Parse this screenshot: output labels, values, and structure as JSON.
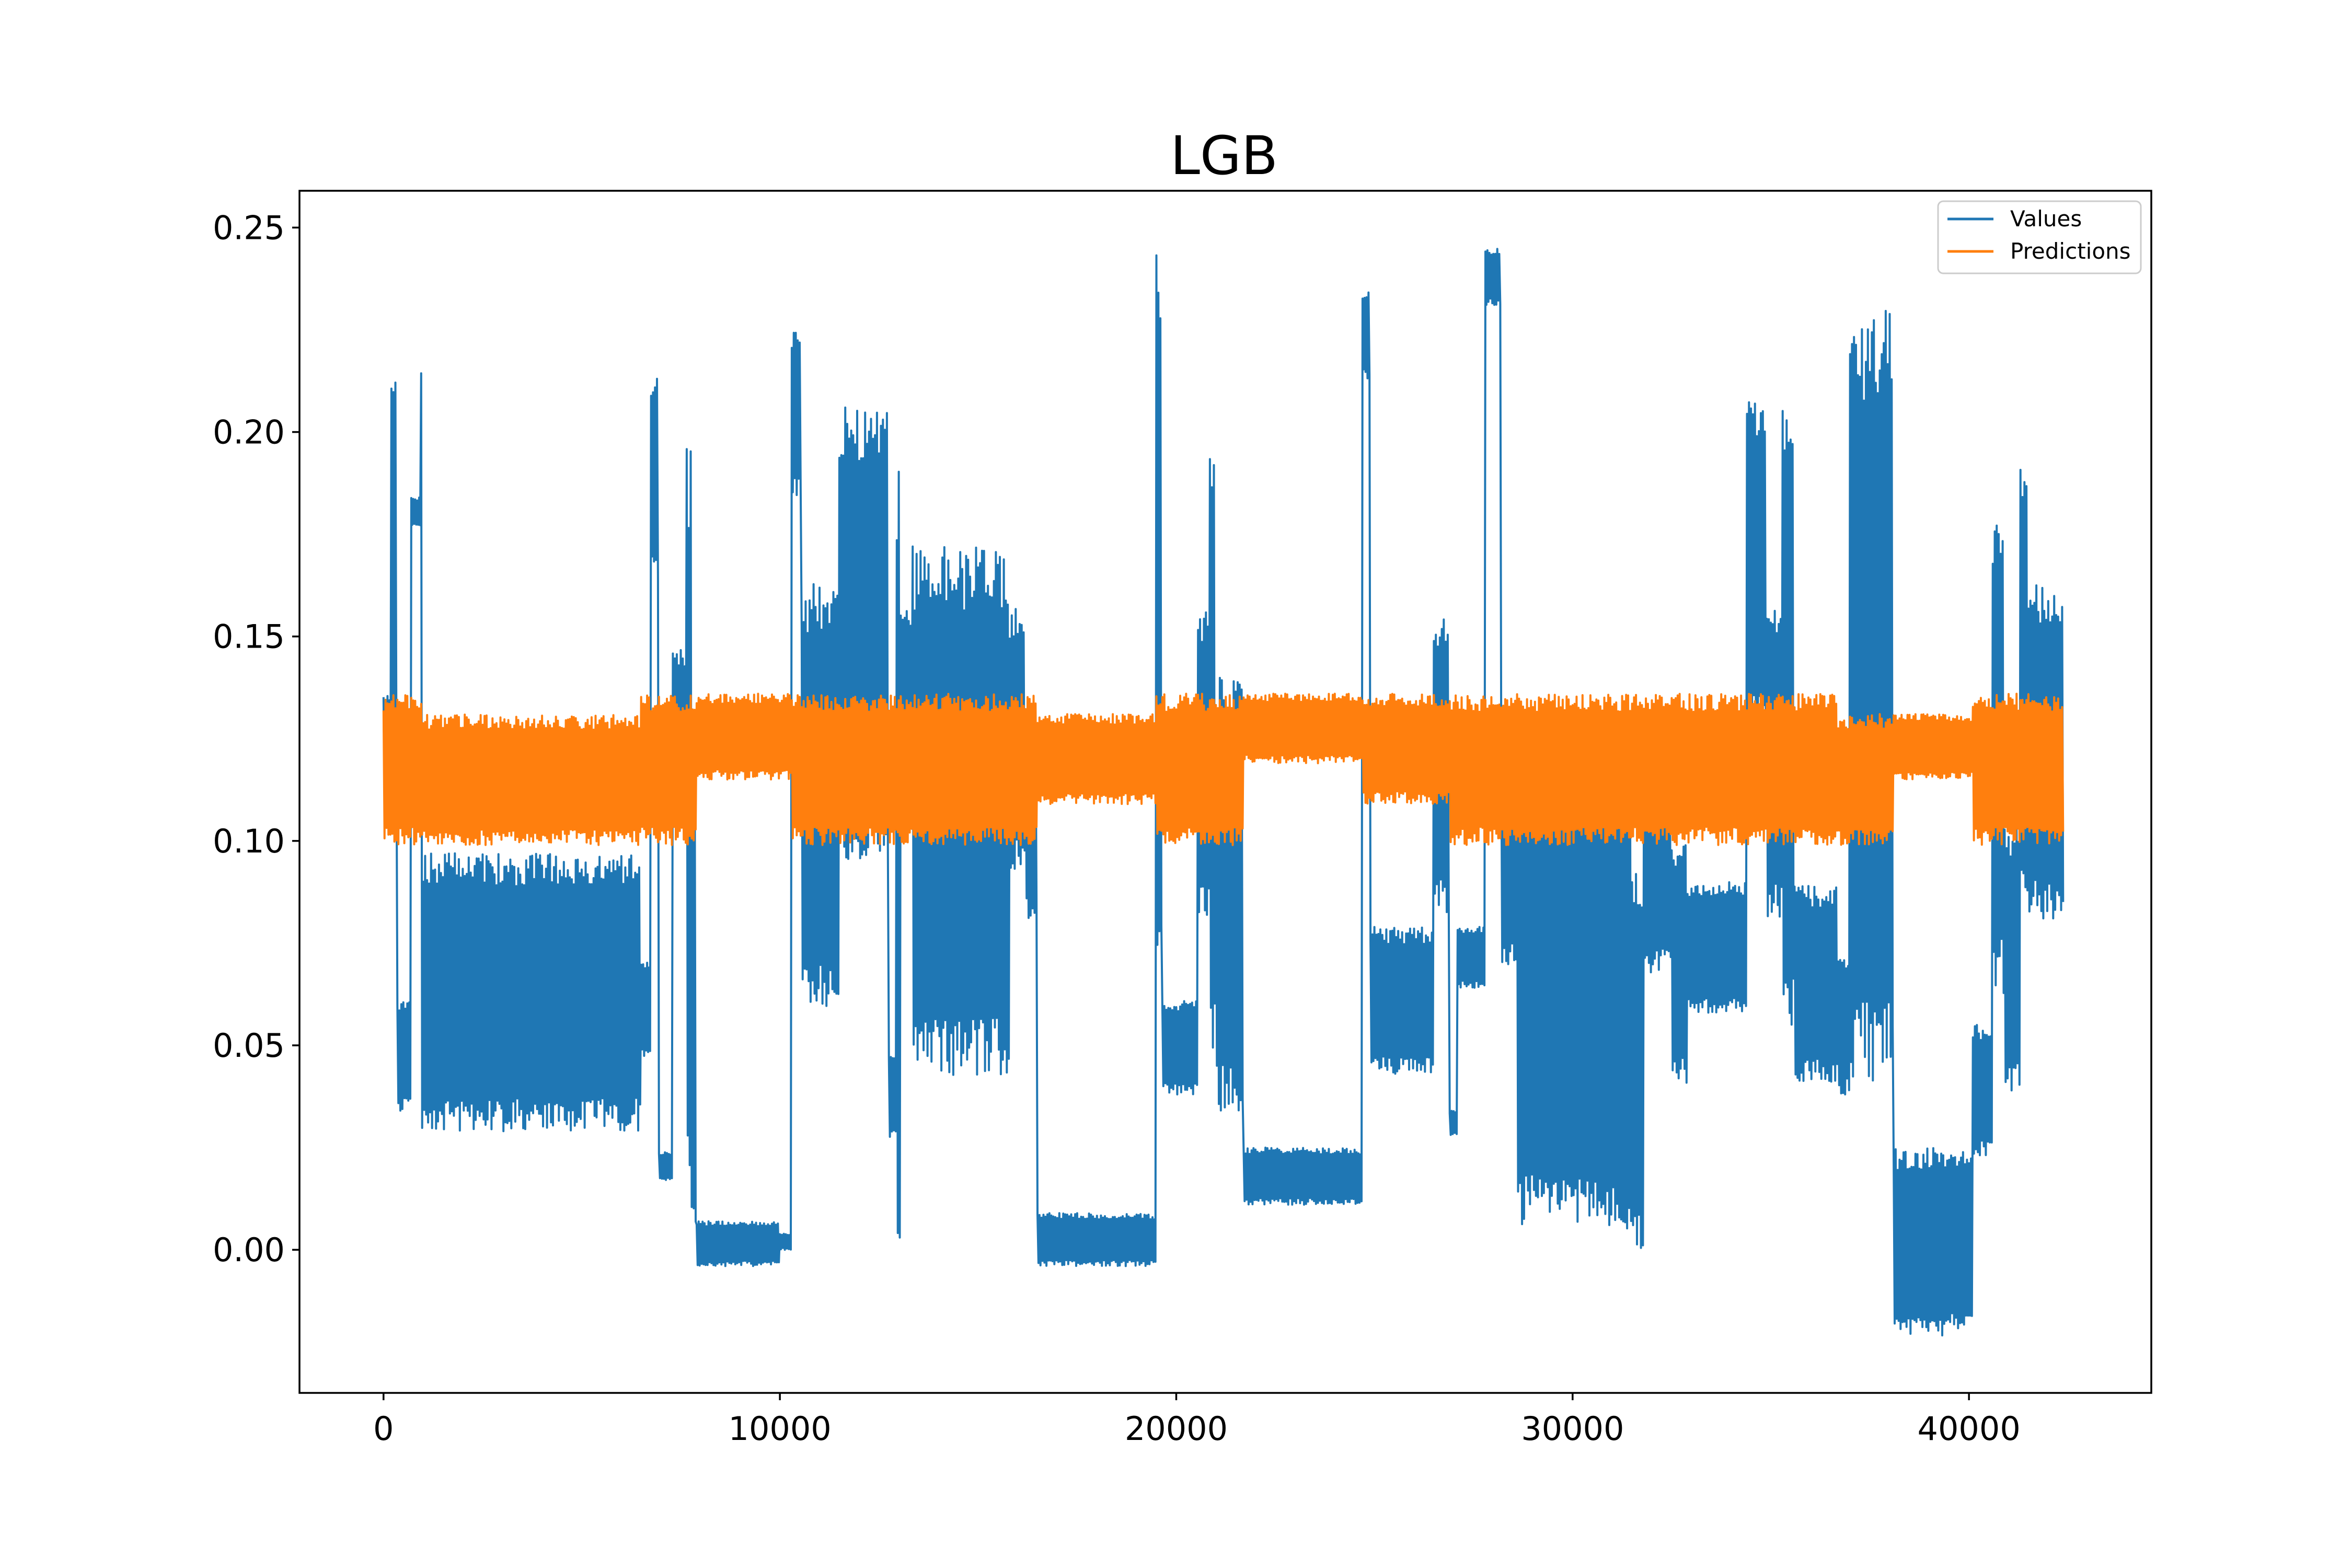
{
  "chart_data": {
    "type": "line",
    "title": "LGB",
    "xlabel": "",
    "ylabel": "",
    "xlim": [
      -2120,
      44600
    ],
    "ylim": [
      -0.035,
      0.259
    ],
    "x_ticks": [
      0,
      10000,
      20000,
      30000,
      40000
    ],
    "x_tick_labels": [
      "0",
      "10000",
      "20000",
      "30000",
      "40000"
    ],
    "y_ticks": [
      0.0,
      0.05,
      0.1,
      0.15,
      0.2,
      0.25
    ],
    "y_tick_labels": [
      "0.00",
      "0.05",
      "0.10",
      "0.15",
      "0.20",
      "0.25"
    ],
    "grid": false,
    "legend_position": "top-right",
    "series_step": 25,
    "series": [
      {
        "name": "Values",
        "color": "#1f77b4",
        "segments": [
          {
            "x_start": 0,
            "x_end": 200,
            "low": 0.109,
            "high": 0.136
          },
          {
            "x_start": 200,
            "x_end": 350,
            "low": 0.115,
            "high": 0.217
          },
          {
            "x_start": 350,
            "x_end": 700,
            "low": 0.034,
            "high": 0.061
          },
          {
            "x_start": 700,
            "x_end": 950,
            "low": 0.177,
            "high": 0.184
          },
          {
            "x_start": 950,
            "x_end": 1000,
            "low": 0.01,
            "high": 0.221
          },
          {
            "x_start": 1000,
            "x_end": 6500,
            "low": 0.029,
            "high": 0.097
          },
          {
            "x_start": 6500,
            "x_end": 6750,
            "low": 0.047,
            "high": 0.071
          },
          {
            "x_start": 6750,
            "x_end": 6950,
            "low": 0.164,
            "high": 0.214
          },
          {
            "x_start": 6950,
            "x_end": 7300,
            "low": 0.017,
            "high": 0.024
          },
          {
            "x_start": 7300,
            "x_end": 7650,
            "low": 0.104,
            "high": 0.147
          },
          {
            "x_start": 7650,
            "x_end": 7800,
            "low": 0.006,
            "high": 0.198
          },
          {
            "x_start": 7800,
            "x_end": 7900,
            "low": 0.006,
            "high": 0.125
          },
          {
            "x_start": 7900,
            "x_end": 10000,
            "low": -0.004,
            "high": 0.007
          },
          {
            "x_start": 10000,
            "x_end": 10300,
            "low": 0.0,
            "high": 0.004
          },
          {
            "x_start": 10300,
            "x_end": 10550,
            "low": 0.184,
            "high": 0.225
          },
          {
            "x_start": 10550,
            "x_end": 11500,
            "low": 0.058,
            "high": 0.163
          },
          {
            "x_start": 11500,
            "x_end": 12750,
            "low": 0.095,
            "high": 0.206
          },
          {
            "x_start": 12750,
            "x_end": 12950,
            "low": 0.027,
            "high": 0.048
          },
          {
            "x_start": 12950,
            "x_end": 13050,
            "low": 0.0,
            "high": 0.191
          },
          {
            "x_start": 13050,
            "x_end": 13350,
            "low": 0.117,
            "high": 0.157
          },
          {
            "x_start": 13350,
            "x_end": 15800,
            "low": 0.041,
            "high": 0.172
          },
          {
            "x_start": 15800,
            "x_end": 16200,
            "low": 0.093,
            "high": 0.157
          },
          {
            "x_start": 16200,
            "x_end": 16500,
            "low": 0.081,
            "high": 0.131
          },
          {
            "x_start": 16500,
            "x_end": 19500,
            "low": -0.004,
            "high": 0.009
          },
          {
            "x_start": 19500,
            "x_end": 19650,
            "low": 0.072,
            "high": 0.244
          },
          {
            "x_start": 19650,
            "x_end": 20550,
            "low": 0.038,
            "high": 0.061
          },
          {
            "x_start": 20550,
            "x_end": 20850,
            "low": 0.08,
            "high": 0.156
          },
          {
            "x_start": 20850,
            "x_end": 21000,
            "low": 0.048,
            "high": 0.202
          },
          {
            "x_start": 21000,
            "x_end": 21700,
            "low": 0.032,
            "high": 0.142
          },
          {
            "x_start": 21700,
            "x_end": 24700,
            "low": 0.011,
            "high": 0.025
          },
          {
            "x_start": 24700,
            "x_end": 24900,
            "low": 0.213,
            "high": 0.235
          },
          {
            "x_start": 24900,
            "x_end": 26500,
            "low": 0.043,
            "high": 0.079
          },
          {
            "x_start": 26500,
            "x_end": 26900,
            "low": 0.082,
            "high": 0.155
          },
          {
            "x_start": 26900,
            "x_end": 27100,
            "low": 0.028,
            "high": 0.034
          },
          {
            "x_start": 27100,
            "x_end": 27800,
            "low": 0.064,
            "high": 0.079
          },
          {
            "x_start": 27800,
            "x_end": 28200,
            "low": 0.231,
            "high": 0.245
          },
          {
            "x_start": 28200,
            "x_end": 28600,
            "low": 0.069,
            "high": 0.122
          },
          {
            "x_start": 28600,
            "x_end": 31500,
            "low": 0.005,
            "high": 0.117
          },
          {
            "x_start": 31500,
            "x_end": 31800,
            "low": -0.002,
            "high": 0.094
          },
          {
            "x_start": 31800,
            "x_end": 32500,
            "low": 0.067,
            "high": 0.125
          },
          {
            "x_start": 32500,
            "x_end": 32900,
            "low": 0.04,
            "high": 0.1
          },
          {
            "x_start": 32900,
            "x_end": 34400,
            "low": 0.058,
            "high": 0.09
          },
          {
            "x_start": 34400,
            "x_end": 34900,
            "low": 0.126,
            "high": 0.208
          },
          {
            "x_start": 34900,
            "x_end": 35300,
            "low": 0.081,
            "high": 0.158
          },
          {
            "x_start": 35300,
            "x_end": 35600,
            "low": 0.053,
            "high": 0.21
          },
          {
            "x_start": 35600,
            "x_end": 36700,
            "low": 0.041,
            "high": 0.089
          },
          {
            "x_start": 36700,
            "x_end": 37000,
            "low": 0.038,
            "high": 0.072
          },
          {
            "x_start": 37000,
            "x_end": 38100,
            "low": 0.04,
            "high": 0.23
          },
          {
            "x_start": 38100,
            "x_end": 40100,
            "low": -0.021,
            "high": 0.025
          },
          {
            "x_start": 40100,
            "x_end": 40600,
            "low": 0.023,
            "high": 0.055
          },
          {
            "x_start": 40600,
            "x_end": 40900,
            "low": 0.062,
            "high": 0.18
          },
          {
            "x_start": 40900,
            "x_end": 41300,
            "low": 0.038,
            "high": 0.104
          },
          {
            "x_start": 41300,
            "x_end": 41500,
            "low": 0.081,
            "high": 0.194
          },
          {
            "x_start": 41500,
            "x_end": 42400,
            "low": 0.081,
            "high": 0.163
          }
        ]
      },
      {
        "name": "Predictions",
        "color": "#ff7f0e",
        "segments": [
          {
            "x_start": 0,
            "x_end": 1000,
            "low": 0.099,
            "high": 0.136
          },
          {
            "x_start": 1000,
            "x_end": 6500,
            "low": 0.099,
            "high": 0.131
          },
          {
            "x_start": 6500,
            "x_end": 7900,
            "low": 0.099,
            "high": 0.136
          },
          {
            "x_start": 7900,
            "x_end": 10300,
            "low": 0.115,
            "high": 0.136
          },
          {
            "x_start": 10300,
            "x_end": 16500,
            "low": 0.099,
            "high": 0.136
          },
          {
            "x_start": 16500,
            "x_end": 19500,
            "low": 0.109,
            "high": 0.131
          },
          {
            "x_start": 19500,
            "x_end": 21700,
            "low": 0.099,
            "high": 0.136
          },
          {
            "x_start": 21700,
            "x_end": 24700,
            "low": 0.119,
            "high": 0.136
          },
          {
            "x_start": 24700,
            "x_end": 26900,
            "low": 0.109,
            "high": 0.136
          },
          {
            "x_start": 26900,
            "x_end": 36700,
            "low": 0.099,
            "high": 0.136
          },
          {
            "x_start": 36700,
            "x_end": 38100,
            "low": 0.099,
            "high": 0.131
          },
          {
            "x_start": 38100,
            "x_end": 40100,
            "low": 0.115,
            "high": 0.131
          },
          {
            "x_start": 40100,
            "x_end": 42400,
            "low": 0.099,
            "high": 0.136
          }
        ]
      }
    ]
  }
}
